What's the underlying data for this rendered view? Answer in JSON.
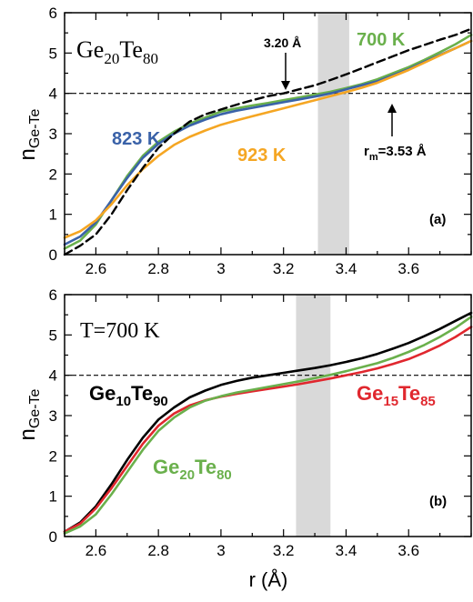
{
  "chart_data": [
    {
      "panel_label": "(a)",
      "type": "line",
      "composition": {
        "base1": "Ge",
        "sub1": "20",
        "base2": "Te",
        "sub2": "80"
      },
      "ylabel": {
        "base": "n",
        "sub": "Ge-Te"
      },
      "xlabel": "",
      "xlim": [
        2.5,
        3.8
      ],
      "ylim": [
        0,
        6
      ],
      "xticks": [
        "2.6",
        "2.8",
        "3",
        "3.2",
        "3.4",
        "3.6"
      ],
      "yticks": [
        "0",
        "1",
        "2",
        "3",
        "4",
        "5",
        "6"
      ],
      "hline": 4,
      "band": [
        3.31,
        3.41
      ],
      "annotations": {
        "rmin_base": "3.20 Å",
        "rm_base": "r",
        "rm_sub": "m",
        "rm_value": "=3.53 Å"
      },
      "series": [
        {
          "name": "700 K",
          "color": "#6ab04c",
          "dash": "solid",
          "x": [
            2.5,
            2.55,
            2.6,
            2.65,
            2.7,
            2.75,
            2.8,
            2.85,
            2.9,
            2.95,
            3.0,
            3.05,
            3.1,
            3.15,
            3.2,
            3.25,
            3.3,
            3.35,
            3.4,
            3.45,
            3.5,
            3.55,
            3.6,
            3.65,
            3.7,
            3.75,
            3.8
          ],
          "values": [
            0.15,
            0.35,
            0.75,
            1.35,
            1.95,
            2.45,
            2.8,
            3.05,
            3.25,
            3.4,
            3.55,
            3.63,
            3.7,
            3.76,
            3.83,
            3.9,
            3.97,
            4.04,
            4.13,
            4.23,
            4.35,
            4.5,
            4.65,
            4.83,
            5.02,
            5.22,
            5.45
          ]
        },
        {
          "name": "823 K",
          "color": "#3a62a8",
          "dash": "solid",
          "x": [
            2.5,
            2.55,
            2.6,
            2.65,
            2.7,
            2.75,
            2.8,
            2.85,
            2.9,
            2.95,
            3.0,
            3.05,
            3.1,
            3.15,
            3.2,
            3.25,
            3.3,
            3.35,
            3.4,
            3.45,
            3.5,
            3.55,
            3.6,
            3.65,
            3.7,
            3.75,
            3.8
          ],
          "values": [
            0.25,
            0.45,
            0.8,
            1.35,
            1.9,
            2.4,
            2.75,
            3.0,
            3.2,
            3.35,
            3.48,
            3.57,
            3.64,
            3.71,
            3.78,
            3.85,
            3.92,
            4.0,
            4.1,
            4.2,
            4.3,
            4.45,
            4.6,
            4.78,
            4.95,
            5.12,
            5.3
          ]
        },
        {
          "name": "923 K",
          "color": "#f5a623",
          "dash": "solid",
          "x": [
            2.5,
            2.55,
            2.6,
            2.65,
            2.7,
            2.75,
            2.8,
            2.85,
            2.9,
            2.95,
            3.0,
            3.05,
            3.1,
            3.15,
            3.2,
            3.25,
            3.3,
            3.35,
            3.4,
            3.45,
            3.5,
            3.55,
            3.6,
            3.65,
            3.7,
            3.75,
            3.8
          ],
          "values": [
            0.42,
            0.58,
            0.85,
            1.25,
            1.72,
            2.12,
            2.45,
            2.72,
            2.92,
            3.08,
            3.22,
            3.33,
            3.43,
            3.53,
            3.63,
            3.73,
            3.83,
            3.93,
            4.03,
            4.14,
            4.26,
            4.42,
            4.58,
            4.76,
            4.94,
            5.12,
            5.3
          ]
        },
        {
          "name": "",
          "color": "#000000",
          "dash": "dashed",
          "x": [
            2.5,
            2.55,
            2.6,
            2.65,
            2.7,
            2.75,
            2.8,
            2.85,
            2.9,
            2.95,
            3.0,
            3.05,
            3.1,
            3.15,
            3.2,
            3.25,
            3.3,
            3.35,
            3.4,
            3.45,
            3.5,
            3.55,
            3.6,
            3.65,
            3.7,
            3.75,
            3.8
          ],
          "values": [
            0.0,
            0.22,
            0.5,
            1.0,
            1.6,
            2.15,
            2.65,
            3.0,
            3.3,
            3.48,
            3.6,
            3.72,
            3.83,
            3.93,
            4.0,
            4.1,
            4.2,
            4.33,
            4.47,
            4.62,
            4.77,
            4.92,
            5.07,
            5.2,
            5.33,
            5.45,
            5.6
          ]
        }
      ]
    },
    {
      "panel_label": "(b)",
      "type": "line",
      "temperature": "T=700 K",
      "ylabel": {
        "base": "n",
        "sub": "Ge-Te"
      },
      "xlabel": "r (Å)",
      "xlim": [
        2.5,
        3.8
      ],
      "ylim": [
        0,
        6
      ],
      "xticks": [
        "2.6",
        "2.8",
        "3",
        "3.2",
        "3.4",
        "3.6"
      ],
      "yticks": [
        "0",
        "1",
        "2",
        "3",
        "4",
        "5",
        "6"
      ],
      "hline": 4,
      "band": [
        3.24,
        3.35
      ],
      "series": [
        {
          "name": "Ge10Te90",
          "label": {
            "base1": "Ge",
            "sub1": "10",
            "base2": "Te",
            "sub2": "90"
          },
          "color": "#000000",
          "dash": "solid",
          "x": [
            2.5,
            2.55,
            2.6,
            2.65,
            2.7,
            2.75,
            2.8,
            2.85,
            2.9,
            2.95,
            3.0,
            3.05,
            3.1,
            3.15,
            3.2,
            3.25,
            3.3,
            3.35,
            3.4,
            3.45,
            3.5,
            3.55,
            3.6,
            3.65,
            3.7,
            3.75,
            3.8
          ],
          "values": [
            0.12,
            0.35,
            0.75,
            1.3,
            1.9,
            2.45,
            2.9,
            3.2,
            3.45,
            3.62,
            3.76,
            3.86,
            3.94,
            4.0,
            4.06,
            4.12,
            4.18,
            4.25,
            4.33,
            4.42,
            4.53,
            4.66,
            4.8,
            4.97,
            5.15,
            5.35,
            5.55
          ]
        },
        {
          "name": "Ge15Te85",
          "label": {
            "base1": "Ge",
            "sub1": "15",
            "base2": "Te",
            "sub2": "85"
          },
          "color": "#e0272e",
          "dash": "solid",
          "x": [
            2.5,
            2.55,
            2.6,
            2.65,
            2.7,
            2.75,
            2.8,
            2.85,
            2.9,
            2.95,
            3.0,
            3.05,
            3.1,
            3.15,
            3.2,
            3.25,
            3.3,
            3.35,
            3.4,
            3.45,
            3.5,
            3.55,
            3.6,
            3.65,
            3.7,
            3.75,
            3.8
          ],
          "values": [
            0.12,
            0.32,
            0.7,
            1.2,
            1.75,
            2.3,
            2.75,
            3.05,
            3.25,
            3.38,
            3.47,
            3.54,
            3.6,
            3.66,
            3.72,
            3.78,
            3.85,
            3.92,
            4.0,
            4.08,
            4.17,
            4.28,
            4.4,
            4.56,
            4.74,
            4.95,
            5.2
          ]
        },
        {
          "name": "Ge20Te80",
          "label": {
            "base1": "Ge",
            "sub1": "20",
            "base2": "Te",
            "sub2": "80"
          },
          "color": "#6ab04c",
          "dash": "solid",
          "x": [
            2.5,
            2.55,
            2.6,
            2.65,
            2.7,
            2.75,
            2.8,
            2.85,
            2.9,
            2.95,
            3.0,
            3.05,
            3.1,
            3.15,
            3.2,
            3.25,
            3.3,
            3.35,
            3.4,
            3.45,
            3.5,
            3.55,
            3.6,
            3.65,
            3.7,
            3.75,
            3.8
          ],
          "values": [
            0.08,
            0.25,
            0.55,
            1.05,
            1.6,
            2.15,
            2.62,
            2.95,
            3.2,
            3.37,
            3.48,
            3.57,
            3.64,
            3.71,
            3.78,
            3.85,
            3.93,
            4.01,
            4.1,
            4.2,
            4.3,
            4.43,
            4.58,
            4.75,
            4.95,
            5.18,
            5.45
          ]
        }
      ]
    }
  ]
}
